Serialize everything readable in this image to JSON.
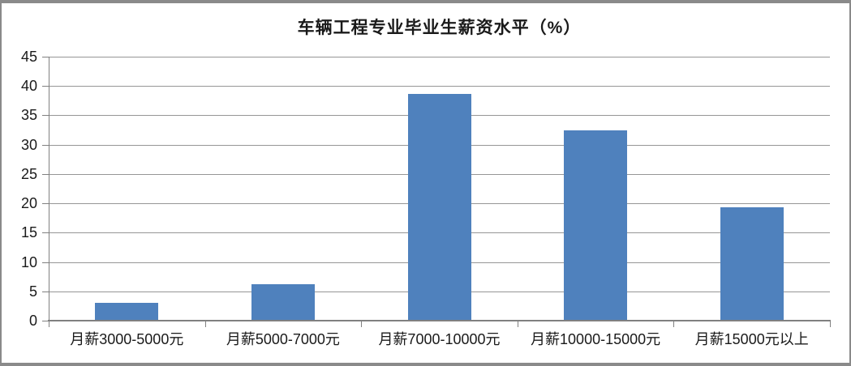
{
  "chart_data": {
    "type": "bar",
    "title": "车辆工程专业毕业生薪资水平（%）",
    "categories": [
      "月薪3000-5000元",
      "月薪5000-7000元",
      "月薪7000-10000元",
      "月薪10000-15000元",
      "月薪15000元以上"
    ],
    "values": [
      3,
      6.2,
      38.7,
      32.5,
      19.3
    ],
    "xlabel": "",
    "ylabel": "",
    "ylim": [
      0,
      45
    ],
    "ytick_step": 5,
    "ytick_labels": [
      "0",
      "5",
      "10",
      "15",
      "20",
      "25",
      "30",
      "35",
      "40",
      "45"
    ],
    "grid": "horizontal",
    "legend": "none",
    "colors": {
      "bar_fill": "#4F81BD",
      "gridline": "#969696",
      "axis": "#808080",
      "text": "#1a1a1a",
      "frame_border": "#8a8a8a",
      "background": "#ffffff"
    }
  }
}
